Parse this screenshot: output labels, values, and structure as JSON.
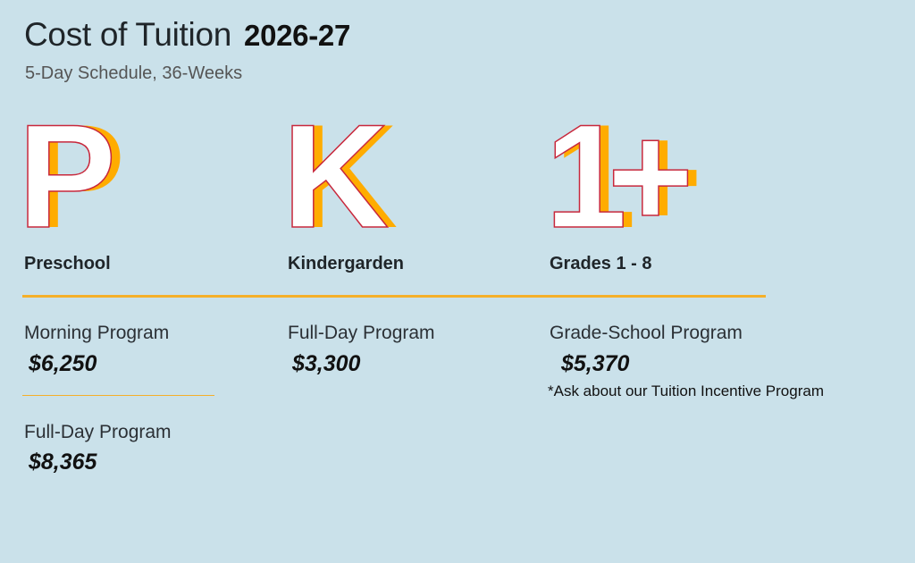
{
  "header": {
    "title": "Cost of Tuition",
    "year": "2026-27",
    "subtitle": "5-Day Schedule, 36-Weeks"
  },
  "colors": {
    "background": "#cae1ea",
    "letter_fill": "#ffffff",
    "letter_stroke": "#c8283c",
    "letter_shadow": "#ffac00",
    "rule": "#f5b02a"
  },
  "columns": [
    {
      "glyph": "P",
      "category": "Preschool",
      "programs": [
        {
          "name": "Morning Program",
          "price": "$6,250"
        },
        {
          "name": "Full-Day Program",
          "price": "$8,365"
        }
      ]
    },
    {
      "glyph": "K",
      "category": "Kindergarden",
      "programs": [
        {
          "name": "Full-Day Program",
          "price": "$3,300"
        }
      ]
    },
    {
      "glyph": "1+",
      "category": "Grades 1 - 8",
      "programs": [
        {
          "name": "Grade-School Program",
          "price": "$5,370"
        }
      ],
      "note": "*Ask about our Tuition Incentive Program"
    }
  ]
}
